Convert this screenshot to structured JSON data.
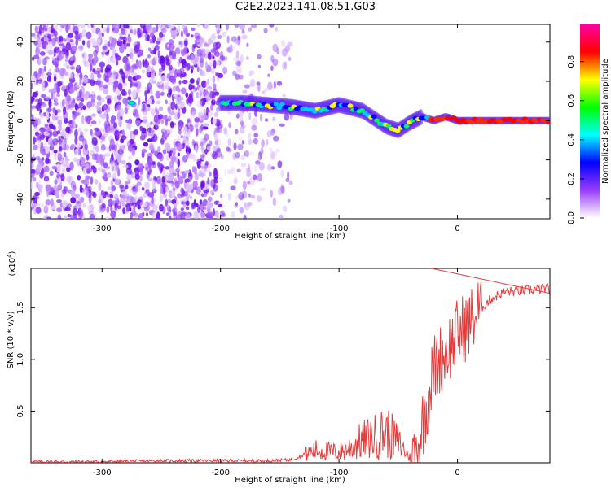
{
  "title": "C2E2.2023.141.08.51.G03",
  "chart_data": [
    {
      "type": "heatmap",
      "xlabel": "Height of straight line (km)",
      "ylabel": "Frequency (Hz)",
      "xlim": [
        -360,
        78
      ],
      "ylim": [
        -50,
        49
      ],
      "xticks": [
        -300,
        -200,
        -100,
        0
      ],
      "yticks": [
        -40,
        -20,
        0,
        20,
        40
      ],
      "ridge": {
        "x": [
          -275,
          -200,
          -180,
          -160,
          -140,
          -120,
          -100,
          -80,
          -70,
          -60,
          -50,
          -40,
          -30,
          -20,
          -10,
          0,
          20,
          40,
          60,
          78
        ],
        "y": [
          9,
          9,
          9,
          8,
          7,
          5,
          8,
          5,
          1,
          -3,
          -5,
          -1,
          2,
          0,
          2,
          0,
          0,
          0,
          0,
          0
        ]
      }
    },
    {
      "type": "line",
      "xlabel": "Height of straight line (km)",
      "ylabel": "SNR (10 * v/v)",
      "multiplier": "(x10",
      "multiplier_exp": "4",
      "multiplier_close": ")",
      "xlim": [
        -360,
        78
      ],
      "ylim": [
        0,
        1.88
      ],
      "xticks": [
        -300,
        -200,
        -100,
        0
      ],
      "yticks": [
        0.5,
        1.0,
        1.5
      ],
      "ytick_labels": [
        "0.5",
        "1.0",
        "1.5"
      ],
      "series": [
        {
          "color": "#e83a3a",
          "x": [
            -360,
            -300,
            -250,
            -200,
            -160,
            -140,
            -120,
            -100,
            -90,
            -80,
            -70,
            -60,
            -50,
            -45,
            -40,
            -35,
            -30,
            -25,
            -22,
            -20,
            -15,
            -10,
            -5,
            0,
            10,
            20,
            30,
            40,
            50,
            60,
            70,
            78
          ],
          "y": [
            0.01,
            0.01,
            0.02,
            0.02,
            0.02,
            0.03,
            0.12,
            0.1,
            0.15,
            0.22,
            0.25,
            0.3,
            0.2,
            0.12,
            0.05,
            0.08,
            0.35,
            0.62,
            0.8,
            0.9,
            1.0,
            1.08,
            1.15,
            1.25,
            1.35,
            1.5,
            1.6,
            1.65,
            1.66,
            1.67,
            1.68,
            1.69
          ]
        }
      ]
    }
  ],
  "colorbar": {
    "label": "Normalized spectral amplitude",
    "ticks": [
      "0.0",
      "0.2",
      "0.4",
      "0.6",
      "0.8"
    ],
    "tick_values": [
      0.0,
      0.2,
      0.4,
      0.6,
      0.8
    ],
    "range": [
      0,
      0.99
    ],
    "colors": [
      "#ffffff",
      "#9a3cff",
      "#0000ff",
      "#00ffff",
      "#00ff00",
      "#ffff00",
      "#ff0000",
      "#ff00a0"
    ]
  }
}
